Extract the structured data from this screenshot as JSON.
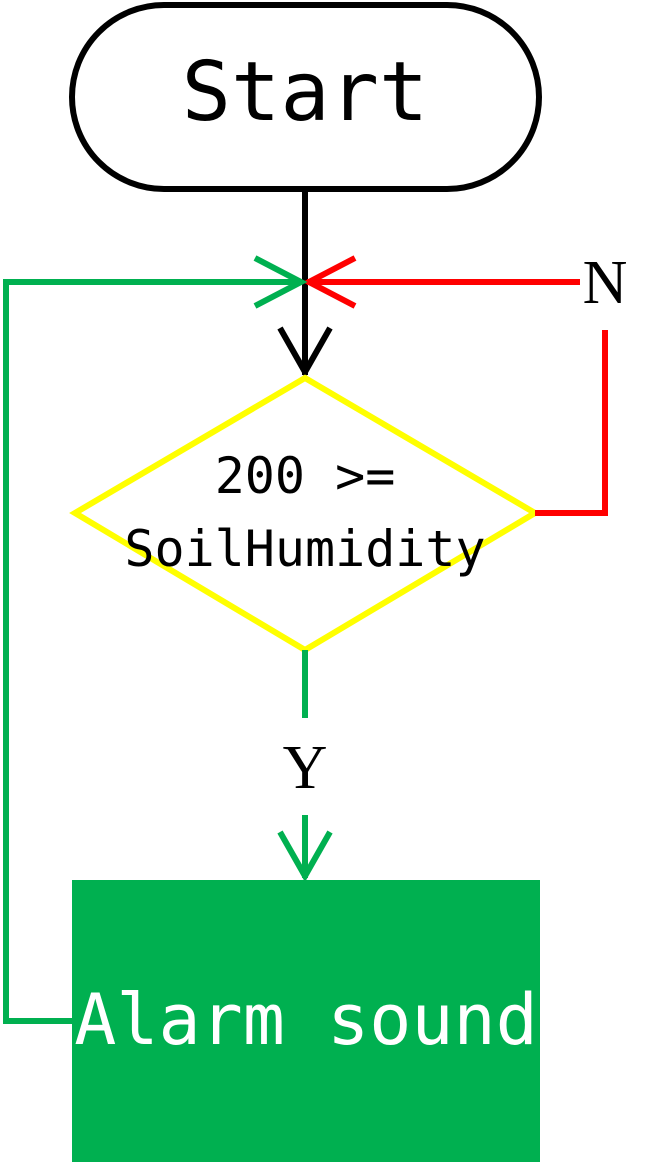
{
  "flowchart": {
    "start": {
      "label": "Start"
    },
    "decision": {
      "line1": "200 >=",
      "line2": "SoilHumidity"
    },
    "branches": {
      "no_label": "N",
      "yes_label": "Y"
    },
    "process": {
      "label": "Alarm sound"
    }
  },
  "colors": {
    "start_stroke": "#000000",
    "decision_stroke": "#ffff00",
    "no_branch": "#ff0000",
    "yes_branch": "#00b050",
    "process_fill": "#00b050",
    "process_text": "#ffffff",
    "text": "#000000"
  }
}
